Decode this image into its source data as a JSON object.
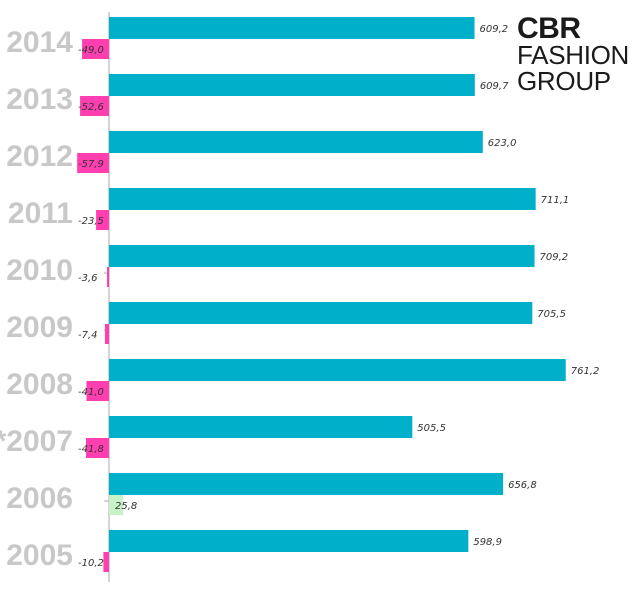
{
  "logo": {
    "line1": "CBR",
    "line2": "FASHION",
    "line3": "GROUP"
  },
  "colors": {
    "revenue": "#00afc9",
    "negative": "#ff3fb0",
    "positive": "#c8f2c8",
    "axis": "#aaaaaa",
    "year_label": "#c8c8c8"
  },
  "chart_data": {
    "type": "bar",
    "orientation": "horizontal",
    "categories": [
      "2014",
      "2013",
      "2012",
      "2011",
      "2010",
      "2009",
      "2008",
      "*2007",
      "2006",
      "2005"
    ],
    "series": [
      {
        "values": [
          609.2,
          609.7,
          623.0,
          711.1,
          709.2,
          705.5,
          761.2,
          505.5,
          656.8,
          598.9
        ],
        "labels": [
          "609,2",
          "609,7",
          "623,0",
          "711,1",
          "709,2",
          "705,5",
          "761,2",
          "505,5",
          "656,8",
          "598,9"
        ]
      },
      {
        "values": [
          -49.0,
          -52.6,
          -57.9,
          -23.5,
          -3.6,
          -7.4,
          -41.0,
          -41.8,
          25.8,
          -10.2
        ],
        "labels": [
          "-49,0",
          "-52,6",
          "-57,9",
          "-23,5",
          "-3,6",
          "-7,4",
          "-41,0",
          "-41,8",
          "25,8",
          "-10,2"
        ]
      }
    ],
    "grid": false,
    "legend": "none"
  }
}
